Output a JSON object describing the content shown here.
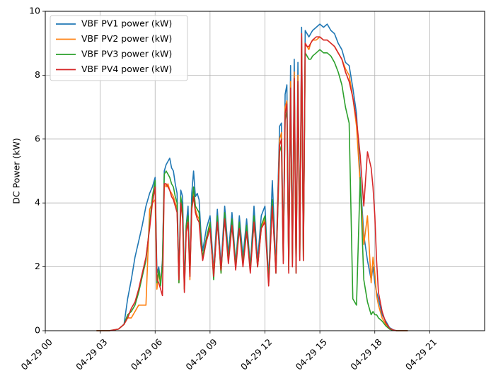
{
  "chart_data": {
    "type": "line",
    "title": "",
    "xlabel": "",
    "ylabel": "DC Power (kW)",
    "xlim": [
      0,
      24
    ],
    "ylim": [
      0,
      10
    ],
    "grid": true,
    "legend_position": "top-left",
    "x_ticks": [
      {
        "hour": 0,
        "label": "04-29 00"
      },
      {
        "hour": 3,
        "label": "04-29 03"
      },
      {
        "hour": 6,
        "label": "04-29 06"
      },
      {
        "hour": 9,
        "label": "04-29 09"
      },
      {
        "hour": 12,
        "label": "04-29 12"
      },
      {
        "hour": 15,
        "label": "04-29 15"
      },
      {
        "hour": 18,
        "label": "04-29 18"
      },
      {
        "hour": 21,
        "label": "04-29 21"
      }
    ],
    "y_ticks": [
      {
        "value": 0,
        "label": "0"
      },
      {
        "value": 2,
        "label": "2"
      },
      {
        "value": 4,
        "label": "4"
      },
      {
        "value": 6,
        "label": "6"
      },
      {
        "value": 8,
        "label": "8"
      },
      {
        "value": 10,
        "label": "10"
      }
    ],
    "series": [
      {
        "name": "VBF PV1 power (kW)",
        "color": "#1f77b4",
        "x": [
          2.8,
          3.5,
          4.0,
          4.3,
          4.5,
          4.7,
          4.9,
          5.1,
          5.3,
          5.5,
          5.7,
          5.85,
          6.0,
          6.1,
          6.2,
          6.3,
          6.4,
          6.5,
          6.6,
          6.7,
          6.8,
          6.9,
          7.0,
          7.1,
          7.2,
          7.3,
          7.4,
          7.5,
          7.6,
          7.7,
          7.8,
          7.9,
          8.0,
          8.1,
          8.2,
          8.3,
          8.4,
          8.5,
          8.6,
          8.8,
          9.0,
          9.2,
          9.4,
          9.6,
          9.8,
          10.0,
          10.2,
          10.4,
          10.6,
          10.8,
          11.0,
          11.2,
          11.4,
          11.6,
          11.8,
          12.0,
          12.2,
          12.4,
          12.6,
          12.8,
          12.9,
          13.0,
          13.1,
          13.2,
          13.3,
          13.4,
          13.5,
          13.6,
          13.7,
          13.8,
          13.9,
          14.0,
          14.1,
          14.2,
          14.3,
          14.4,
          14.5,
          14.6,
          14.8,
          15.0,
          15.2,
          15.4,
          15.6,
          15.8,
          16.0,
          16.2,
          16.4,
          16.6,
          16.8,
          17.0,
          17.2,
          17.4,
          17.6,
          17.8,
          17.9,
          18.0,
          18.1,
          18.2,
          18.4,
          18.6,
          18.8,
          19.0,
          19.2,
          19.4,
          19.6,
          19.8
        ],
        "y": [
          0,
          0,
          0.05,
          0.2,
          1.0,
          1.6,
          2.3,
          2.8,
          3.3,
          3.9,
          4.3,
          4.5,
          4.8,
          1.8,
          2.0,
          1.5,
          2.2,
          5.0,
          5.2,
          5.3,
          5.4,
          5.1,
          5.0,
          4.6,
          4.3,
          1.7,
          4.4,
          4.2,
          1.4,
          3.3,
          3.9,
          1.7,
          4.3,
          5.0,
          4.2,
          4.3,
          4.1,
          3.1,
          2.5,
          3.2,
          3.6,
          1.9,
          3.8,
          2.0,
          3.9,
          2.4,
          3.7,
          2.1,
          3.6,
          2.3,
          3.5,
          2.0,
          3.9,
          2.2,
          3.6,
          3.9,
          1.6,
          4.7,
          2.0,
          6.4,
          6.5,
          2.5,
          7.4,
          7.7,
          2.1,
          8.3,
          2.4,
          8.5,
          2.0,
          8.4,
          2.6,
          9.5,
          2.5,
          9.4,
          9.3,
          9.2,
          9.3,
          9.4,
          9.5,
          9.6,
          9.5,
          9.6,
          9.4,
          9.3,
          9.0,
          8.8,
          8.4,
          8.3,
          7.6,
          6.8,
          4.8,
          3.0,
          2.2,
          1.6,
          2.0,
          1.5,
          1.2,
          1.0,
          0.5,
          0.3,
          0.1,
          0.03,
          0,
          0,
          0,
          0
        ]
      },
      {
        "name": "VBF PV2 power (kW)",
        "color": "#ff7f0e",
        "x": [
          2.8,
          3.5,
          4.0,
          4.3,
          4.5,
          4.7,
          4.9,
          5.1,
          5.3,
          5.5,
          5.7,
          5.85,
          6.0,
          6.1,
          6.2,
          6.3,
          6.4,
          6.5,
          6.6,
          6.7,
          6.8,
          6.9,
          7.0,
          7.1,
          7.2,
          7.3,
          7.4,
          7.5,
          7.6,
          7.7,
          7.8,
          7.9,
          8.0,
          8.1,
          8.2,
          8.3,
          8.4,
          8.5,
          8.6,
          8.8,
          9.0,
          9.2,
          9.4,
          9.6,
          9.8,
          10.0,
          10.2,
          10.4,
          10.6,
          10.8,
          11.0,
          11.2,
          11.4,
          11.6,
          11.8,
          12.0,
          12.2,
          12.4,
          12.6,
          12.8,
          12.9,
          13.0,
          13.1,
          13.2,
          13.3,
          13.4,
          13.5,
          13.6,
          13.7,
          13.8,
          13.9,
          14.0,
          14.1,
          14.2,
          14.3,
          14.4,
          14.5,
          14.6,
          14.8,
          15.0,
          15.2,
          15.4,
          15.6,
          15.8,
          16.0,
          16.2,
          16.4,
          16.6,
          16.8,
          17.0,
          17.2,
          17.4,
          17.6,
          17.8,
          17.9,
          18.0,
          18.1,
          18.2,
          18.4,
          18.6,
          18.8,
          19.0,
          19.2,
          19.4,
          19.6,
          19.8
        ],
        "y": [
          0,
          0,
          0.05,
          0.2,
          0.4,
          0.4,
          0.6,
          0.8,
          0.8,
          0.8,
          3.8,
          4.0,
          4.1,
          1.3,
          1.8,
          1.6,
          2.0,
          4.6,
          4.5,
          4.6,
          4.4,
          4.3,
          4.2,
          4.0,
          3.8,
          1.5,
          4.0,
          3.6,
          1.3,
          3.1,
          3.4,
          1.6,
          3.9,
          4.3,
          3.8,
          3.6,
          3.5,
          2.8,
          2.3,
          2.9,
          3.3,
          1.8,
          3.5,
          1.8,
          3.6,
          2.2,
          3.4,
          2.0,
          3.3,
          2.1,
          3.2,
          1.9,
          3.4,
          2.0,
          3.2,
          3.5,
          1.5,
          4.0,
          1.9,
          6.0,
          6.2,
          2.3,
          7.0,
          7.2,
          2.0,
          7.8,
          2.2,
          8.1,
          1.9,
          8.0,
          2.4,
          9.2,
          2.3,
          9.0,
          8.9,
          8.8,
          9.0,
          9.1,
          9.1,
          9.2,
          9.1,
          9.1,
          9.0,
          8.9,
          8.7,
          8.5,
          8.2,
          8.0,
          7.3,
          6.4,
          4.6,
          2.7,
          3.6,
          1.5,
          2.3,
          1.8,
          1.1,
          0.8,
          0.4,
          0.2,
          0.08,
          0.02,
          0,
          0,
          0,
          0
        ]
      },
      {
        "name": "VBF PV3 power (kW)",
        "color": "#2ca02c",
        "x": [
          2.8,
          3.5,
          4.0,
          4.3,
          4.5,
          4.7,
          4.9,
          5.1,
          5.3,
          5.5,
          5.7,
          5.85,
          6.0,
          6.1,
          6.2,
          6.3,
          6.4,
          6.5,
          6.6,
          6.7,
          6.8,
          6.9,
          7.0,
          7.1,
          7.2,
          7.3,
          7.4,
          7.5,
          7.6,
          7.7,
          7.8,
          7.9,
          8.0,
          8.1,
          8.2,
          8.3,
          8.4,
          8.5,
          8.6,
          8.8,
          9.0,
          9.2,
          9.4,
          9.6,
          9.8,
          10.0,
          10.2,
          10.4,
          10.6,
          10.8,
          11.0,
          11.2,
          11.4,
          11.6,
          11.8,
          12.0,
          12.2,
          12.4,
          12.6,
          12.8,
          12.9,
          13.0,
          13.1,
          13.2,
          13.3,
          13.4,
          13.5,
          13.6,
          13.7,
          13.8,
          13.9,
          14.0,
          14.1,
          14.2,
          14.3,
          14.4,
          14.5,
          14.6,
          14.8,
          15.0,
          15.2,
          15.4,
          15.6,
          15.8,
          16.0,
          16.2,
          16.4,
          16.6,
          16.8,
          17.0,
          17.2,
          17.4,
          17.6,
          17.8,
          17.9,
          18.0,
          18.1,
          18.2,
          18.4,
          18.6,
          18.8,
          19.0,
          19.2,
          19.4,
          19.6,
          19.8
        ],
        "y": [
          0,
          0,
          0.05,
          0.2,
          0.5,
          0.6,
          0.8,
          1.2,
          1.7,
          2.2,
          3.3,
          4.2,
          4.7,
          1.5,
          1.9,
          1.4,
          2.1,
          4.9,
          5.0,
          4.9,
          4.8,
          4.6,
          4.5,
          4.2,
          4.0,
          1.5,
          4.2,
          3.8,
          1.3,
          3.3,
          3.6,
          1.8,
          3.9,
          4.5,
          3.9,
          3.8,
          3.7,
          2.9,
          2.3,
          2.9,
          3.4,
          1.6,
          3.6,
          1.8,
          3.7,
          2.2,
          3.5,
          2.0,
          3.4,
          2.1,
          3.3,
          1.9,
          3.6,
          2.0,
          3.3,
          3.6,
          1.5,
          4.1,
          1.8,
          5.6,
          5.8,
          2.2,
          6.6,
          6.9,
          1.9,
          7.5,
          2.1,
          7.8,
          1.8,
          7.7,
          2.3,
          8.9,
          2.2,
          8.7,
          8.6,
          8.5,
          8.5,
          8.6,
          8.7,
          8.8,
          8.7,
          8.7,
          8.6,
          8.4,
          8.1,
          7.7,
          7.0,
          6.5,
          1.0,
          0.8,
          4.8,
          1.6,
          0.9,
          0.5,
          0.6,
          0.5,
          0.5,
          0.4,
          0.3,
          0.15,
          0.05,
          0.01,
          0,
          0,
          0,
          0
        ]
      },
      {
        "name": "VBF PV4 power (kW)",
        "color": "#d62728",
        "x": [
          2.8,
          3.5,
          4.0,
          4.3,
          4.5,
          4.7,
          4.9,
          5.1,
          5.3,
          5.5,
          5.7,
          5.85,
          6.0,
          6.1,
          6.2,
          6.3,
          6.4,
          6.5,
          6.6,
          6.7,
          6.8,
          6.9,
          7.0,
          7.1,
          7.2,
          7.3,
          7.4,
          7.5,
          7.6,
          7.7,
          7.8,
          7.9,
          8.0,
          8.1,
          8.2,
          8.3,
          8.4,
          8.5,
          8.6,
          8.8,
          9.0,
          9.2,
          9.4,
          9.6,
          9.8,
          10.0,
          10.2,
          10.4,
          10.6,
          10.8,
          11.0,
          11.2,
          11.4,
          11.6,
          11.8,
          12.0,
          12.2,
          12.4,
          12.6,
          12.8,
          12.9,
          13.0,
          13.1,
          13.2,
          13.3,
          13.4,
          13.5,
          13.6,
          13.7,
          13.8,
          13.9,
          14.0,
          14.1,
          14.2,
          14.3,
          14.4,
          14.5,
          14.6,
          14.8,
          15.0,
          15.2,
          15.4,
          15.6,
          15.8,
          16.0,
          16.2,
          16.4,
          16.6,
          16.8,
          17.0,
          17.2,
          17.4,
          17.6,
          17.8,
          17.9,
          18.0,
          18.1,
          18.2,
          18.4,
          18.6,
          18.8,
          19.0,
          19.2,
          19.4,
          19.6,
          19.8
        ],
        "y": [
          0,
          0,
          0.05,
          0.2,
          0.4,
          0.7,
          0.9,
          1.3,
          1.8,
          2.3,
          3.2,
          4.0,
          4.5,
          1.6,
          1.5,
          1.3,
          1.1,
          4.6,
          4.6,
          4.5,
          4.4,
          4.2,
          4.1,
          3.9,
          3.7,
          1.6,
          4.0,
          3.5,
          1.2,
          3.1,
          3.4,
          1.7,
          3.8,
          4.2,
          3.7,
          3.5,
          3.4,
          2.7,
          2.2,
          2.8,
          3.2,
          1.7,
          3.4,
          1.9,
          3.5,
          2.1,
          3.3,
          1.9,
          3.2,
          2.0,
          3.1,
          1.8,
          3.4,
          2.0,
          3.2,
          3.4,
          1.4,
          3.9,
          1.8,
          5.8,
          6.0,
          2.1,
          6.8,
          7.1,
          1.8,
          7.6,
          2.0,
          7.9,
          1.8,
          7.8,
          2.2,
          9.3,
          2.2,
          9.0,
          8.9,
          8.9,
          9.0,
          9.1,
          9.2,
          9.2,
          9.1,
          9.1,
          9.0,
          8.9,
          8.7,
          8.5,
          8.1,
          7.8,
          7.3,
          6.6,
          5.5,
          3.9,
          5.6,
          5.1,
          4.5,
          3.6,
          2.2,
          1.2,
          0.6,
          0.25,
          0.08,
          0.02,
          0,
          0,
          0,
          0
        ]
      }
    ]
  }
}
